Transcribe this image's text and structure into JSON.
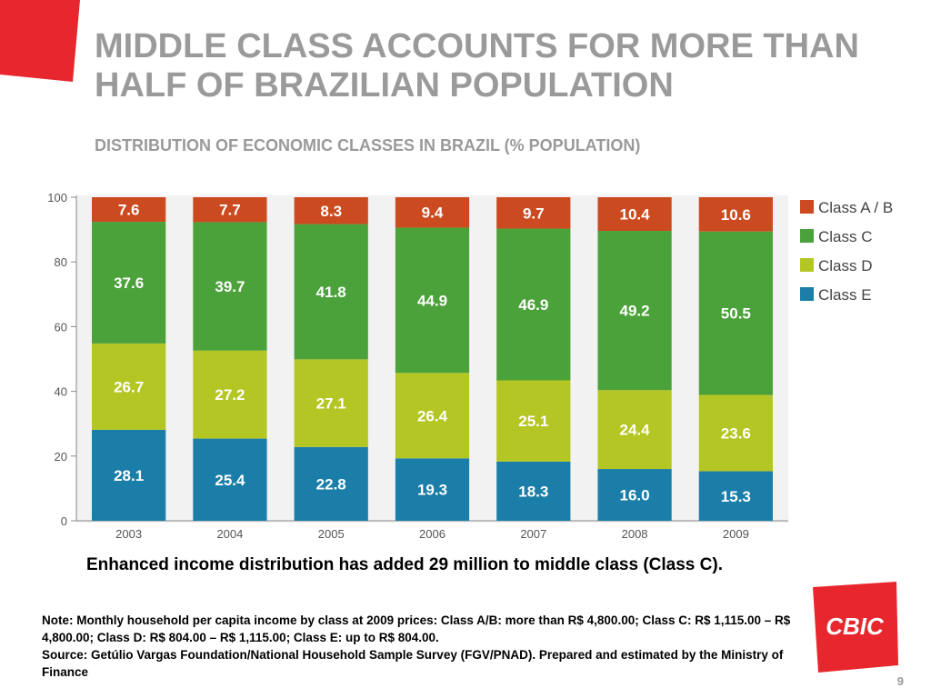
{
  "slide": {
    "title_line1": "MIDDLE CLASS ACCOUNTS FOR MORE THAN",
    "title_line2": "HALF OF BRAZILIAN POPULATION",
    "subtitle": "DISTRIBUTION OF ECONOMIC CLASSES IN BRAZIL (% POPULATION)",
    "takeaway": "Enhanced income distribution has added 29 million to middle class (Class C).",
    "note_line1": "Note: Monthly household per capita income by class at 2009 prices: Class A/B: more than R$ 4,800.00; Class C: R$ 1,115.00 – R$ 4,800.00; Class D: R$ 804.00 – R$ 1,115.00; Class E: up to R$ 804.00.",
    "note_line2": "Source: Getúlio Vargas Foundation/National Household Sample Survey (FGV/PNAD). Prepared and estimated by the Ministry of Finance",
    "logo_text": "CBIC",
    "page_number": "9"
  },
  "colors": {
    "accent_red": "#e8262d",
    "title_gray": "#9a9a9a",
    "class_ab": "#cc4a1f",
    "class_c": "#4ca23a",
    "class_d": "#b4c623",
    "class_e": "#1a7ea9",
    "bar_label": "#ffffff",
    "chart_bg": "#f2f2f2"
  },
  "chart_data": {
    "type": "bar",
    "stacked": true,
    "categories": [
      "2003",
      "2004",
      "2005",
      "2006",
      "2007",
      "2008",
      "2009"
    ],
    "series": [
      {
        "name": "Class E",
        "color": "#1a7ea9",
        "values": [
          28.1,
          25.4,
          22.8,
          19.3,
          18.3,
          16.0,
          15.3
        ],
        "labels": [
          "28.1",
          "25.4",
          "22.8",
          "19.3",
          "18.3",
          "16.0",
          "15.3"
        ]
      },
      {
        "name": "Class D",
        "color": "#b4c623",
        "values": [
          26.7,
          27.2,
          27.1,
          26.4,
          25.1,
          24.4,
          23.6
        ],
        "labels": [
          "26.7",
          "27.2",
          "27.1",
          "26.4",
          "25.1",
          "24.4",
          "23.6"
        ]
      },
      {
        "name": "Class C",
        "color": "#4ca23a",
        "values": [
          37.6,
          39.7,
          41.8,
          44.9,
          46.9,
          49.2,
          50.5
        ],
        "labels": [
          "37.6",
          "39.7",
          "41.8",
          "44.9",
          "46.9",
          "49.2",
          "50.5"
        ]
      },
      {
        "name": "Class A / B",
        "color": "#cc4a1f",
        "values": [
          7.6,
          7.7,
          8.3,
          9.4,
          9.7,
          10.4,
          10.6
        ],
        "labels": [
          "7.6",
          "7.7",
          "8.3",
          "9.4",
          "9.7",
          "10.4",
          "10.6"
        ]
      }
    ],
    "legend_order": [
      "Class A / B",
      "Class C",
      "Class D",
      "Class E"
    ],
    "legend_position": "right",
    "yticks": [
      0,
      20,
      40,
      60,
      80,
      100
    ],
    "ylim": [
      0,
      100
    ],
    "grid": false
  }
}
